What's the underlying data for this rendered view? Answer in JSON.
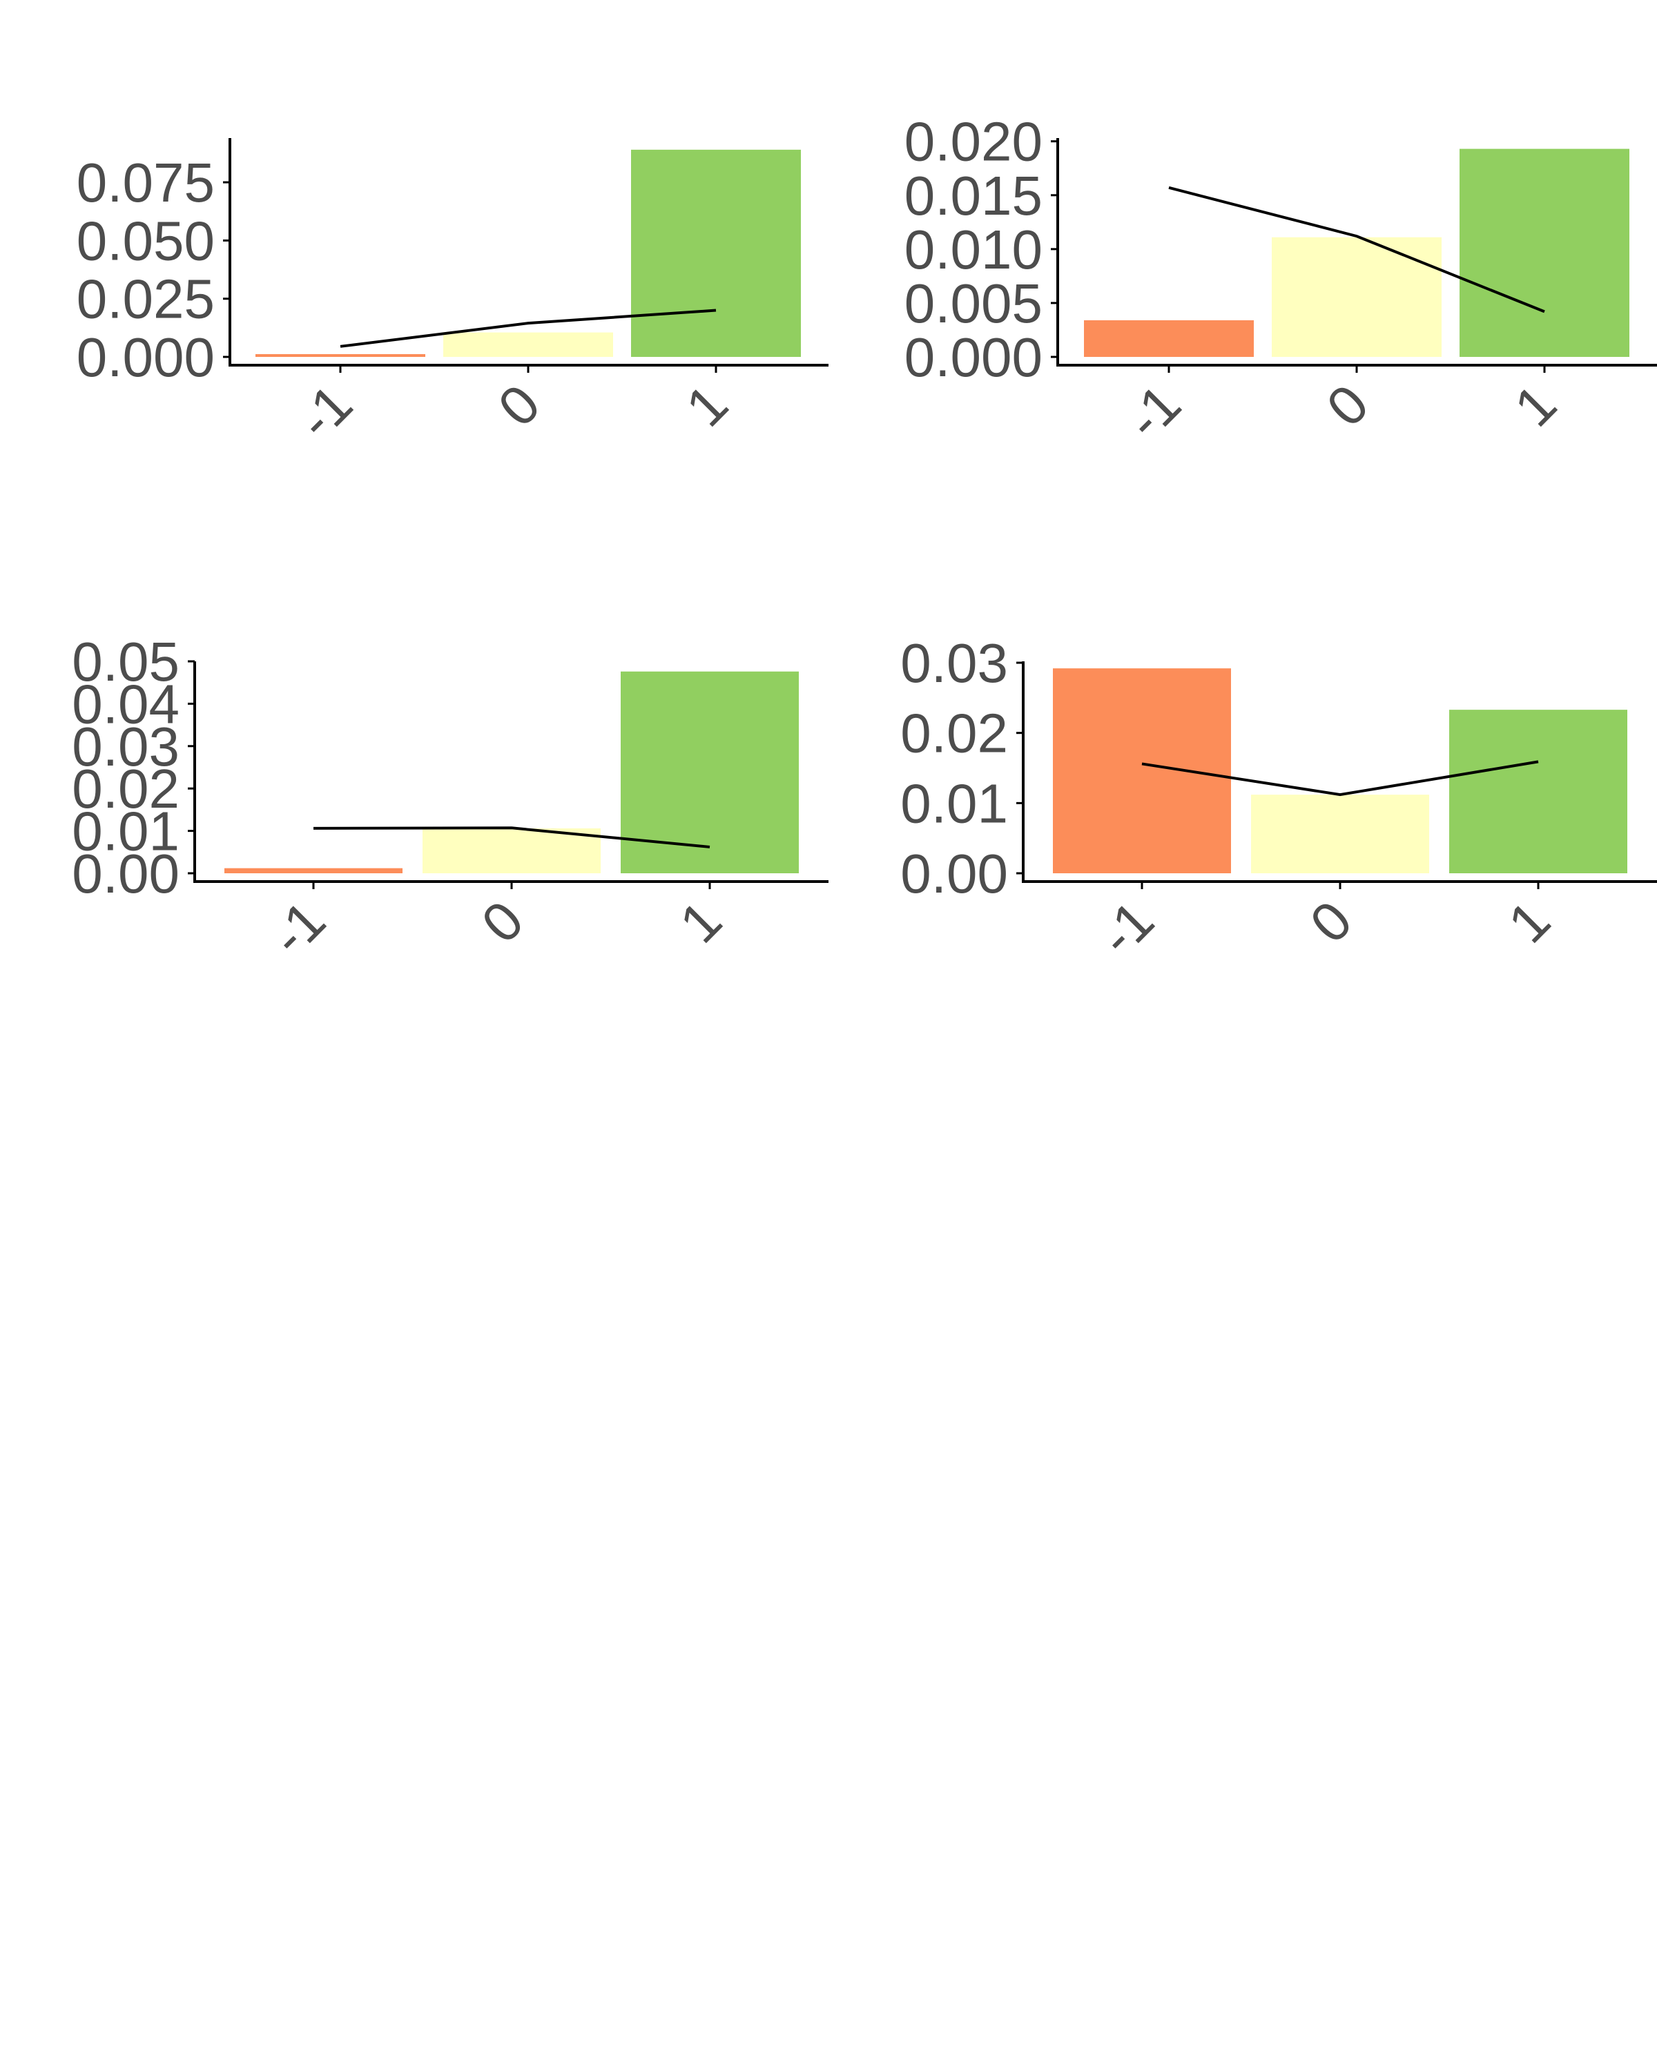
{
  "colors": {
    "negative": "#fc8d59",
    "neutral": "#ffffbf",
    "positive": "#91cf60",
    "line": "#000000",
    "tick_text": "#4d4d4d"
  },
  "chart_data": [
    {
      "type": "bar",
      "overlay": "line",
      "categories": [
        "-1",
        "0",
        "1"
      ],
      "values": [
        0.0012,
        0.0105,
        0.089
      ],
      "line_values": [
        0.0045,
        0.0145,
        0.02
      ],
      "ylim": [
        0,
        0.094
      ],
      "yticks": [
        "0.000",
        "0.025",
        "0.050",
        "0.075"
      ],
      "ytick_values": [
        0,
        0.025,
        0.05,
        0.075
      ]
    },
    {
      "type": "bar",
      "overlay": "line",
      "categories": [
        "-1",
        "0",
        "1"
      ],
      "values": [
        0.0034,
        0.0111,
        0.0193
      ],
      "line_values": [
        0.0157,
        0.0112,
        0.0042
      ],
      "ylim": [
        0,
        0.0203
      ],
      "yticks": [
        "0.000",
        "0.005",
        "0.010",
        "0.015",
        "0.020"
      ],
      "ytick_values": [
        0,
        0.005,
        0.01,
        0.015,
        0.02
      ]
    },
    {
      "type": "bar",
      "overlay": "line",
      "categories": [
        "-1",
        "0",
        "1"
      ],
      "values": [
        0.0012,
        0.0106,
        0.0476
      ],
      "line_values": [
        0.0106,
        0.0107,
        0.0062
      ],
      "ylim": [
        0,
        0.05
      ],
      "yticks": [
        "0.00",
        "0.01",
        "0.02",
        "0.03",
        "0.04",
        "0.05"
      ],
      "ytick_values": [
        0,
        0.01,
        0.02,
        0.03,
        0.04,
        0.05
      ]
    },
    {
      "type": "bar",
      "overlay": "line",
      "categories": [
        "-1",
        "0",
        "1"
      ],
      "values": [
        0.0292,
        0.0112,
        0.0233
      ],
      "line_values": [
        0.0156,
        0.0112,
        0.0159
      ],
      "ylim": [
        0,
        0.0302
      ],
      "yticks": [
        "0.00",
        "0.01",
        "0.02",
        "0.03"
      ],
      "ytick_values": [
        0,
        0.01,
        0.02,
        0.03
      ]
    }
  ]
}
